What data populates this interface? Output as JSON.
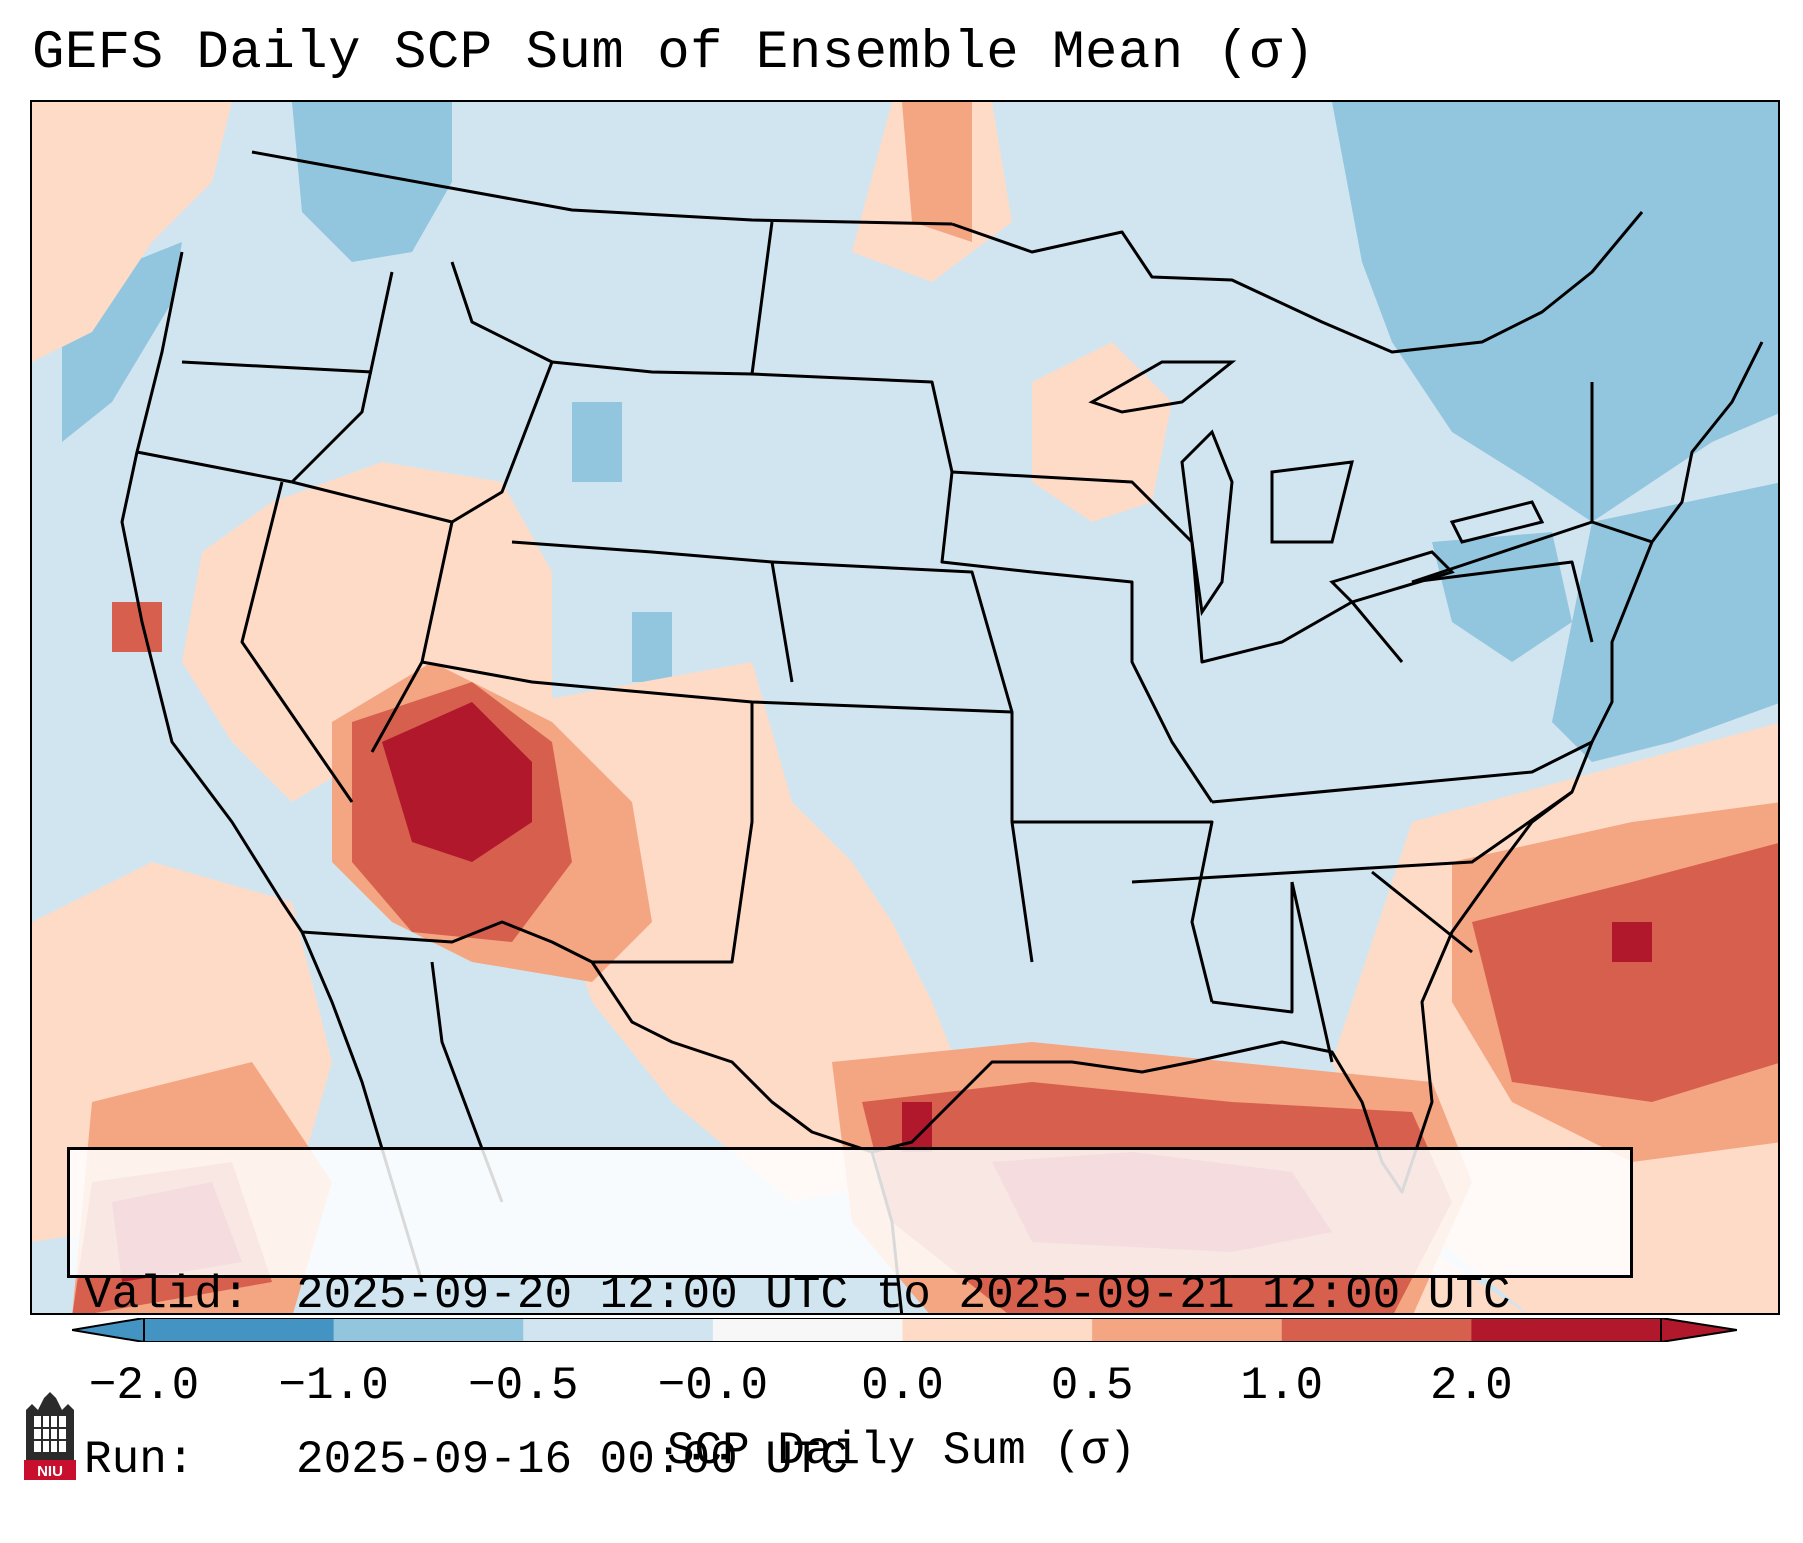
{
  "title": "GEFS Daily SCP Sum of Ensemble Mean (σ)",
  "info": {
    "valid_label": "Valid:",
    "valid_value": "2025-09-20 12:00 UTC to 2025-09-21 12:00 UTC",
    "run_label": "Run:",
    "run_value": "2025-09-16 00:00 UTC"
  },
  "colorbar": {
    "label": "SCP Daily Sum (σ)",
    "ticks": [
      "−2.0",
      "−1.0",
      "−0.5",
      "−0.0",
      "0.0",
      "0.5",
      "1.0",
      "2.0"
    ],
    "colors": [
      "#4393c3",
      "#92c5de",
      "#d1e5f0",
      "#f7f7f7",
      "#fddbc7",
      "#f4a582",
      "#d6604d",
      "#b2182b"
    ]
  },
  "logo": {
    "text": "NIU",
    "icon": "niu-logo-icon"
  },
  "colors": {
    "neutral": "#d1e5f0",
    "blue_light": "#92c5de",
    "pink": "#fddbc7",
    "salmon": "#f4a582",
    "red": "#d6604d",
    "dark_red": "#b2182b"
  }
}
